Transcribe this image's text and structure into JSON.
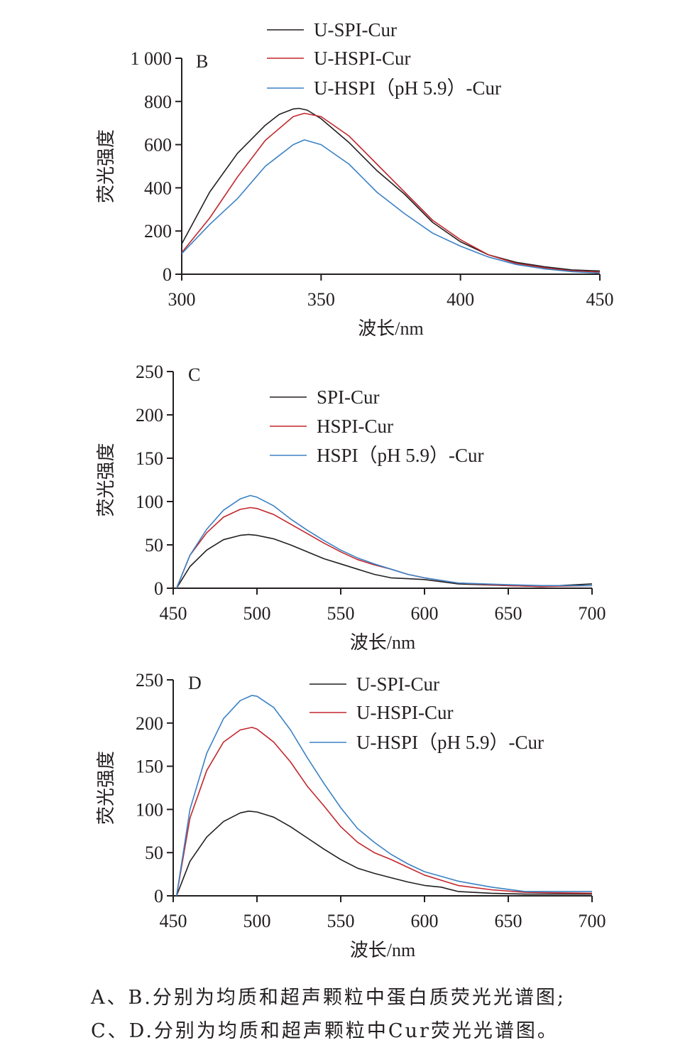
{
  "chart_data": [
    {
      "type": "line",
      "panel_label": "B",
      "xlabel": "波长/nm",
      "ylabel": "荧光强度",
      "xlim": [
        300,
        450
      ],
      "ylim": [
        0,
        1000
      ],
      "x_ticks": [
        300,
        350,
        400,
        450
      ],
      "y_ticks": [
        0,
        200,
        400,
        600,
        800,
        1000
      ],
      "y_tick_labels": [
        "0",
        "200",
        "400",
        "600",
        "800",
        "1 000"
      ],
      "legend_position": "top-center",
      "series": [
        {
          "name": "U-SPI-Cur",
          "color": "#231f20",
          "x": [
            300,
            310,
            320,
            330,
            335,
            340,
            342,
            345,
            350,
            360,
            370,
            380,
            390,
            400,
            410,
            420,
            430,
            440,
            450
          ],
          "y": [
            140,
            380,
            560,
            690,
            740,
            765,
            768,
            760,
            720,
            610,
            480,
            370,
            240,
            150,
            90,
            55,
            35,
            20,
            15
          ]
        },
        {
          "name": "U-HSPI-Cur",
          "color": "#c1272d",
          "x": [
            300,
            310,
            320,
            330,
            340,
            344,
            350,
            360,
            370,
            380,
            390,
            400,
            410,
            420,
            430,
            440,
            450
          ],
          "y": [
            100,
            260,
            450,
            620,
            730,
            745,
            730,
            640,
            510,
            380,
            250,
            160,
            90,
            50,
            30,
            15,
            10
          ]
        },
        {
          "name": "U-HSPI（pH 5.9）-Cur",
          "color": "#3b82c4",
          "x": [
            300,
            310,
            320,
            330,
            340,
            344,
            350,
            360,
            370,
            380,
            390,
            400,
            410,
            420,
            430,
            440,
            450
          ],
          "y": [
            95,
            230,
            350,
            500,
            600,
            622,
            600,
            510,
            380,
            280,
            190,
            130,
            80,
            45,
            25,
            12,
            5
          ]
        }
      ]
    },
    {
      "type": "line",
      "panel_label": "C",
      "xlabel": "波长/nm",
      "ylabel": "荧光强度",
      "xlim": [
        450,
        700
      ],
      "ylim": [
        0,
        250
      ],
      "x_ticks": [
        450,
        500,
        550,
        600,
        650,
        700
      ],
      "y_ticks": [
        0,
        50,
        100,
        150,
        200,
        250
      ],
      "y_tick_labels": [
        "0",
        "50",
        "100",
        "150",
        "200",
        "250"
      ],
      "legend_position": "top-center",
      "series": [
        {
          "name": "SPI-Cur",
          "color": "#231f20",
          "x": [
            452,
            460,
            470,
            480,
            490,
            495,
            500,
            510,
            520,
            530,
            540,
            550,
            560,
            570,
            580,
            590,
            600,
            620,
            650,
            670,
            700
          ],
          "y": [
            0,
            25,
            44,
            56,
            61,
            62,
            61,
            57,
            50,
            42,
            34,
            28,
            22,
            16,
            12,
            11,
            10,
            5,
            3,
            2,
            5
          ]
        },
        {
          "name": "HSPI-Cur",
          "color": "#c1272d",
          "x": [
            452,
            460,
            470,
            480,
            490,
            496,
            500,
            510,
            520,
            530,
            540,
            550,
            560,
            570,
            580,
            590,
            600,
            620,
            650,
            670,
            700
          ],
          "y": [
            0,
            38,
            64,
            82,
            91,
            93,
            92,
            85,
            74,
            63,
            52,
            42,
            33,
            27,
            22,
            16,
            12,
            6,
            3,
            2,
            3
          ]
        },
        {
          "name": "HSPI（pH 5.9）-Cur",
          "color": "#3b82c4",
          "x": [
            452,
            460,
            470,
            480,
            490,
            496,
            500,
            510,
            520,
            530,
            540,
            550,
            560,
            570,
            580,
            590,
            600,
            620,
            650,
            670,
            700
          ],
          "y": [
            0,
            38,
            68,
            90,
            103,
            107,
            105,
            95,
            80,
            67,
            55,
            44,
            35,
            28,
            22,
            16,
            12,
            6,
            4,
            3,
            3
          ]
        }
      ]
    },
    {
      "type": "line",
      "panel_label": "D",
      "xlabel": "波长/nm",
      "ylabel": "荧光强度",
      "xlim": [
        450,
        700
      ],
      "ylim": [
        0,
        250
      ],
      "x_ticks": [
        450,
        500,
        550,
        600,
        650,
        700
      ],
      "y_ticks": [
        0,
        50,
        100,
        150,
        200,
        250
      ],
      "y_tick_labels": [
        "0",
        "50",
        "100",
        "150",
        "200",
        "250"
      ],
      "legend_position": "top-center",
      "series": [
        {
          "name": "U-SPI-Cur",
          "color": "#231f20",
          "x": [
            452,
            460,
            470,
            480,
            490,
            495,
            500,
            510,
            520,
            530,
            540,
            550,
            560,
            570,
            580,
            590,
            600,
            610,
            620,
            640,
            660,
            700
          ],
          "y": [
            0,
            40,
            68,
            86,
            96,
            98,
            97,
            91,
            80,
            67,
            54,
            42,
            32,
            26,
            21,
            16,
            12,
            10,
            5,
            3,
            2,
            2
          ]
        },
        {
          "name": "U-HSPI-Cur",
          "color": "#c1272d",
          "x": [
            452,
            460,
            470,
            480,
            490,
            497,
            500,
            510,
            520,
            530,
            540,
            550,
            560,
            570,
            580,
            590,
            600,
            620,
            640,
            660,
            700
          ],
          "y": [
            0,
            90,
            145,
            178,
            192,
            195,
            193,
            178,
            155,
            127,
            104,
            80,
            62,
            50,
            42,
            33,
            24,
            12,
            7,
            4,
            3
          ]
        },
        {
          "name": "U-HSPI（pH 5.9）-Cur",
          "color": "#3b82c4",
          "x": [
            452,
            460,
            470,
            480,
            490,
            497,
            500,
            510,
            520,
            530,
            540,
            550,
            560,
            570,
            580,
            590,
            600,
            620,
            640,
            660,
            700
          ],
          "y": [
            0,
            100,
            165,
            205,
            226,
            232,
            231,
            218,
            192,
            160,
            130,
            102,
            78,
            62,
            48,
            37,
            28,
            17,
            10,
            5,
            5
          ]
        }
      ]
    }
  ],
  "caption": {
    "line1": "A、B.分别为均质和超声颗粒中蛋白质荧光光谱图;",
    "line2": "C、D.分别为均质和超声颗粒中Cur荧光光谱图。"
  }
}
